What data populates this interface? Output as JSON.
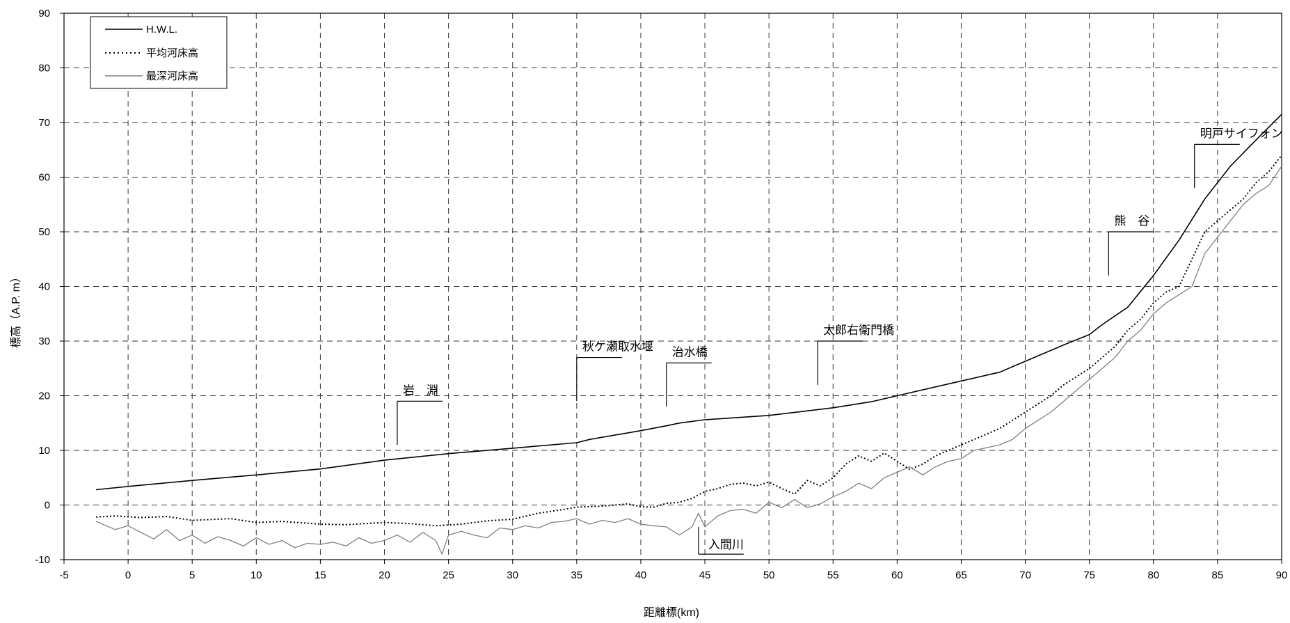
{
  "chart_data": {
    "type": "line",
    "xlabel": "距離標(km)",
    "ylabel": "標高（A.P. m）",
    "xlim": [
      -5,
      90
    ],
    "ylim": [
      -10,
      90
    ],
    "xticks": [
      -5,
      0,
      5,
      10,
      15,
      20,
      25,
      30,
      35,
      40,
      45,
      50,
      55,
      60,
      65,
      70,
      75,
      80,
      85,
      90
    ],
    "yticks": [
      -10,
      0,
      10,
      20,
      30,
      40,
      50,
      60,
      70,
      80,
      90
    ],
    "grid": true,
    "legend_position": "top-left",
    "series": [
      {
        "name": "H.W.L.",
        "style": "solid",
        "color": "#000000",
        "x": [
          -2.5,
          0,
          5,
          10,
          15,
          20,
          25,
          30,
          35,
          36,
          40,
          42,
          43,
          45,
          50,
          55,
          58,
          60,
          65,
          68,
          70,
          73,
          75,
          76,
          78,
          80,
          82,
          84,
          86,
          88,
          90
        ],
        "y": [
          2.8,
          3.4,
          4.5,
          5.5,
          6.6,
          8.2,
          9.4,
          10.4,
          11.4,
          12.0,
          13.6,
          14.5,
          15.0,
          15.6,
          16.4,
          17.8,
          18.9,
          20.0,
          22.7,
          24.3,
          26.3,
          29.3,
          31.2,
          33.0,
          36.2,
          42.0,
          48.5,
          56.0,
          62.0,
          66.8,
          71.5
        ]
      },
      {
        "name": "平均河床高",
        "style": "dotted",
        "color": "#000000",
        "x": [
          -2.5,
          -1,
          1,
          3,
          5,
          8,
          10,
          12,
          15,
          17,
          20,
          22,
          24,
          26,
          28,
          30,
          32,
          34,
          35,
          37,
          39,
          40,
          41,
          42,
          43,
          44,
          45,
          46,
          47,
          48,
          49,
          50,
          51,
          52,
          53,
          54,
          55,
          56,
          57,
          58,
          59,
          60,
          61,
          62,
          63,
          64,
          65,
          66,
          67,
          68,
          69,
          70,
          71,
          72,
          73,
          74,
          75,
          76,
          77,
          78,
          79,
          80,
          81,
          82,
          83,
          84,
          85,
          86,
          87,
          88,
          89,
          90
        ],
        "y": [
          -2.2,
          -2.0,
          -2.3,
          -2.1,
          -2.8,
          -2.5,
          -3.2,
          -3.0,
          -3.5,
          -3.6,
          -3.2,
          -3.4,
          -3.8,
          -3.5,
          -2.9,
          -2.6,
          -1.5,
          -0.8,
          -0.4,
          -0.2,
          0.2,
          -0.3,
          -0.4,
          0.3,
          0.5,
          1.2,
          2.5,
          3.0,
          3.8,
          4.0,
          3.5,
          4.2,
          3.0,
          2.0,
          4.5,
          3.5,
          5.0,
          7.5,
          9.0,
          8.0,
          9.5,
          8.0,
          6.5,
          7.5,
          9.0,
          10.0,
          11.0,
          12.0,
          13.0,
          14.0,
          15.5,
          17.0,
          18.5,
          20.0,
          22.0,
          23.5,
          25.0,
          27.0,
          29.0,
          32.0,
          34.0,
          37.0,
          39.0,
          40.0,
          45.0,
          50.0,
          52.0,
          54.0,
          56.0,
          59.0,
          61.0,
          64.0
        ]
      },
      {
        "name": "最深河床高",
        "style": "solid",
        "color": "#7f7f7f",
        "x": [
          -2.5,
          -1,
          0,
          1,
          2,
          3,
          4,
          5,
          6,
          7,
          8,
          9,
          10,
          11,
          12,
          13,
          14,
          15,
          16,
          17,
          18,
          19,
          20,
          21,
          22,
          23,
          24,
          24.5,
          25,
          26,
          27,
          28,
          29,
          30,
          31,
          32,
          33,
          34,
          35,
          36,
          37,
          38,
          39,
          40,
          41,
          42,
          43,
          44,
          44.5,
          45,
          46,
          47,
          48,
          49,
          50,
          51,
          52,
          53,
          54,
          55,
          56,
          57,
          58,
          59,
          60,
          61,
          62,
          63,
          64,
          65,
          66,
          67,
          68,
          69,
          70,
          71,
          72,
          73,
          74,
          75,
          76,
          77,
          78,
          79,
          80,
          81,
          82,
          83,
          84,
          85,
          86,
          87,
          88,
          89,
          90
        ],
        "y": [
          -3.0,
          -4.5,
          -3.8,
          -5.0,
          -6.2,
          -4.5,
          -6.5,
          -5.5,
          -7.0,
          -5.8,
          -6.5,
          -7.5,
          -6.0,
          -7.2,
          -6.5,
          -7.8,
          -7.0,
          -7.2,
          -6.8,
          -7.5,
          -6.0,
          -7.0,
          -6.5,
          -5.5,
          -6.8,
          -5.0,
          -6.5,
          -9.0,
          -5.5,
          -4.8,
          -5.5,
          -6.0,
          -4.2,
          -4.5,
          -3.8,
          -4.2,
          -3.2,
          -3.0,
          -2.5,
          -3.5,
          -2.8,
          -3.2,
          -2.5,
          -3.5,
          -3.8,
          -4.0,
          -5.5,
          -4.0,
          -1.5,
          -4.0,
          -2.0,
          -1.0,
          -0.8,
          -1.5,
          0.5,
          -0.5,
          1.0,
          -0.5,
          0.2,
          1.5,
          2.5,
          4.0,
          3.0,
          5.0,
          6.0,
          7.0,
          5.5,
          7.0,
          8.0,
          8.5,
          10.0,
          10.5,
          11.0,
          12.0,
          14.0,
          15.5,
          17.0,
          19.0,
          21.0,
          23.0,
          25.0,
          27.0,
          30.0,
          32.0,
          35.0,
          37.0,
          38.5,
          40.0,
          46.0,
          49.0,
          52.0,
          55.0,
          57.0,
          58.5,
          62.0
        ]
      }
    ],
    "annotations": [
      {
        "text": "岩　淵",
        "x": 21,
        "y_bottom": 11,
        "y_top": 19
      },
      {
        "text": "秋ケ瀬取水堰",
        "x": 35,
        "y_bottom": 19,
        "y_top": 27
      },
      {
        "text": "治水橋",
        "x": 42,
        "y_bottom": 18,
        "y_top": 26
      },
      {
        "text": "太郎右衛門橋",
        "x": 53.8,
        "y_bottom": 22,
        "y_top": 30
      },
      {
        "text": "入間川",
        "x": 44.5,
        "y_bottom": -9,
        "y_top": -4
      },
      {
        "text": "熊　谷",
        "x": 76.5,
        "y_bottom": 42,
        "y_top": 50
      },
      {
        "text": "明戸サイフォン",
        "x": 83.2,
        "y_bottom": 58,
        "y_top": 66
      }
    ]
  }
}
